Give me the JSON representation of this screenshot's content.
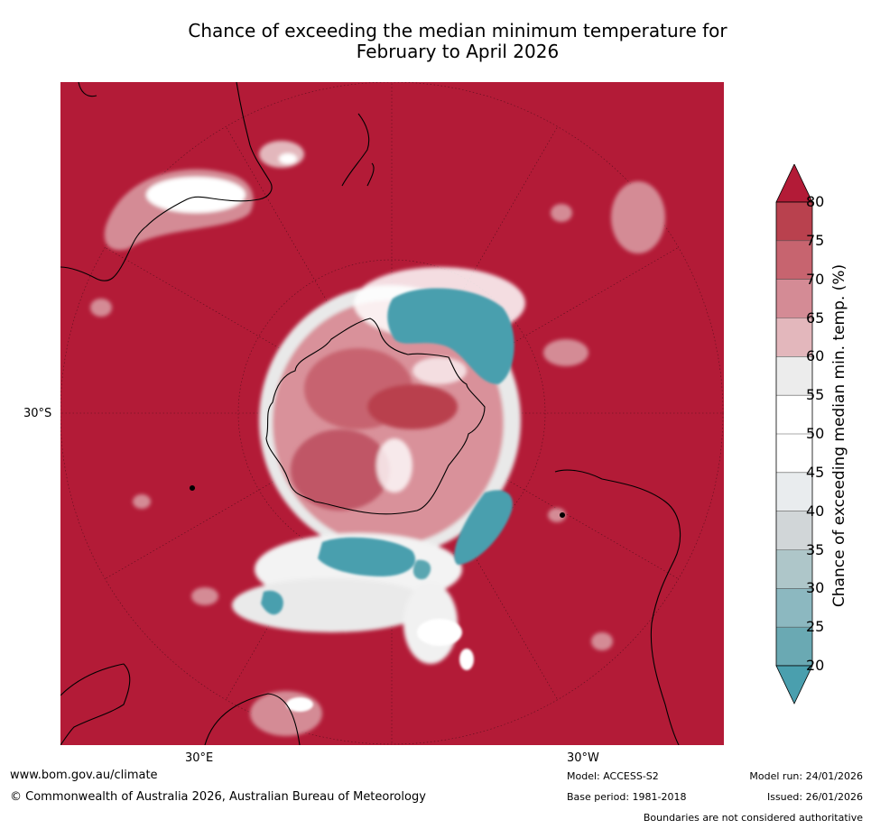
{
  "title": {
    "line1": "Chance of exceeding the median minimum temperature for",
    "line2": "February to April 2026"
  },
  "map": {
    "projection": "south-polar-stereographic",
    "lat_label": "30°S",
    "lon_labels": [
      "30°E",
      "30°W"
    ],
    "background_color": "#b31b37",
    "regions_described": [
      "Antarctica",
      "Australia",
      "New Zealand",
      "South America",
      "Southern Africa"
    ]
  },
  "colorbar": {
    "title": "Chance of exceeding median min. temp. (%)",
    "ticks": [
      "80",
      "75",
      "70",
      "65",
      "60",
      "55",
      "50",
      "45",
      "40",
      "35",
      "30",
      "25",
      "20"
    ],
    "bands": [
      {
        "range": "75-80",
        "color": "#b9414e"
      },
      {
        "range": "70-75",
        "color": "#c7646f"
      },
      {
        "range": "65-70",
        "color": "#d48b95"
      },
      {
        "range": "60-65",
        "color": "#e3b7bc"
      },
      {
        "range": "55-60",
        "color": "#ececec"
      },
      {
        "range": "50-55",
        "color": "#ffffff"
      },
      {
        "range": "45-50",
        "color": "#ffffff"
      },
      {
        "range": "40-45",
        "color": "#e9ecee"
      },
      {
        "range": "35-40",
        "color": "#d1d6d8"
      },
      {
        "range": "30-35",
        "color": "#aec6c9"
      },
      {
        "range": "25-30",
        "color": "#8cb8c0"
      },
      {
        "range": "20-25",
        "color": "#6aa9b3"
      }
    ],
    "over_color": "#b31b37",
    "under_color": "#4a9fae"
  },
  "footer": {
    "website": "www.bom.gov.au/climate",
    "copyright": "© Commonwealth of Australia 2026, Australian Bureau of Meteorology",
    "model": "Model: ACCESS-S2",
    "base_period": "Base period: 1981-2018",
    "model_run": "Model run: 24/01/2026",
    "issued": "Issued: 26/01/2026",
    "disclaimer": "Boundaries are not considered authoritative"
  }
}
